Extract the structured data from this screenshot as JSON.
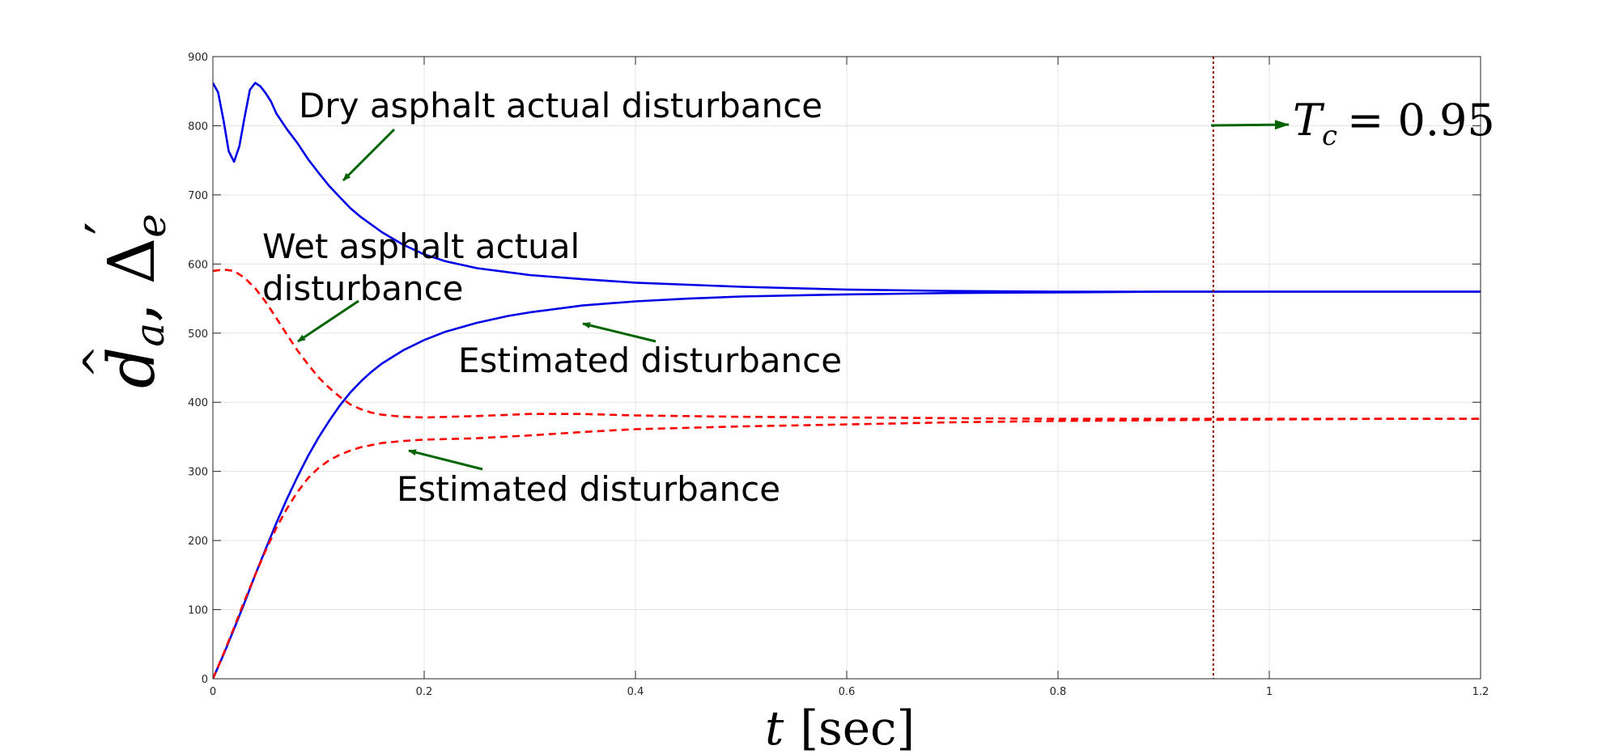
{
  "chart_data": {
    "type": "line",
    "title": "",
    "xlabel_italic": "t",
    "xlabel_unit": "[sec]",
    "ylabel_parts": {
      "d_hat": "d",
      "d_sub": "a",
      "comma": ",",
      "delta": "Δ",
      "delta_sub": "e",
      "prime": "′"
    },
    "xlim": [
      0,
      1.2
    ],
    "ylim": [
      0,
      900
    ],
    "xticks": [
      0,
      0.2,
      0.4,
      0.6,
      0.8,
      1,
      1.2
    ],
    "xtick_labels": [
      "0",
      "0.2",
      "0.4",
      "0.6",
      "0.8",
      "1",
      "1.2"
    ],
    "yticks": [
      0,
      100,
      200,
      300,
      400,
      500,
      600,
      700,
      800,
      900
    ],
    "ytick_labels": [
      "0",
      "100",
      "200",
      "300",
      "400",
      "500",
      "600",
      "700",
      "800",
      "900"
    ],
    "grid": true,
    "colors": {
      "dry": "#0000e6",
      "wet": "#ff0000",
      "arrow": "#006400",
      "tc_line": "#8b0000",
      "axis": "#262626",
      "grid": "#e3e3e3"
    },
    "series": [
      {
        "style": "solid",
        "color": "#0000e6",
        "x": [
          0,
          0.005,
          0.01,
          0.015,
          0.02,
          0.025,
          0.03,
          0.035,
          0.04,
          0.045,
          0.05,
          0.055,
          0.06,
          0.07,
          0.08,
          0.09,
          0.1,
          0.11,
          0.12,
          0.13,
          0.14,
          0.16,
          0.18,
          0.2,
          0.22,
          0.25,
          0.3,
          0.35,
          0.4,
          0.5,
          0.6,
          0.7,
          0.8,
          0.9,
          1.0,
          1.1,
          1.2
        ],
        "y": [
          862,
          848,
          808,
          763,
          748,
          770,
          812,
          852,
          862,
          857,
          847,
          835,
          818,
          795,
          775,
          752,
          732,
          713,
          697,
          681,
          668,
          646,
          628,
          614,
          604,
          594,
          584,
          578,
          573,
          567,
          563,
          561,
          560,
          560,
          560,
          560,
          560
        ]
      },
      {
        "style": "solid",
        "color": "#0000e6",
        "x": [
          0,
          0.01,
          0.02,
          0.03,
          0.04,
          0.05,
          0.06,
          0.07,
          0.08,
          0.09,
          0.1,
          0.11,
          0.12,
          0.13,
          0.14,
          0.15,
          0.16,
          0.18,
          0.2,
          0.22,
          0.25,
          0.28,
          0.3,
          0.35,
          0.4,
          0.45,
          0.5,
          0.6,
          0.7,
          0.8,
          0.9,
          1.0,
          1.1,
          1.2
        ],
        "y": [
          0,
          35,
          72,
          110,
          150,
          188,
          225,
          260,
          292,
          322,
          349,
          373,
          395,
          414,
          430,
          444,
          456,
          475,
          490,
          502,
          515,
          525,
          530,
          540,
          546,
          550,
          553,
          556,
          558,
          559,
          560,
          560,
          560,
          560
        ]
      },
      {
        "style": "dashed",
        "color": "#ff0000",
        "x": [
          0,
          0.01,
          0.02,
          0.03,
          0.04,
          0.05,
          0.06,
          0.07,
          0.08,
          0.09,
          0.1,
          0.11,
          0.12,
          0.13,
          0.14,
          0.15,
          0.16,
          0.18,
          0.2,
          0.25,
          0.3,
          0.35,
          0.4,
          0.5,
          0.6,
          0.7,
          0.8,
          0.9,
          1.0,
          1.1,
          1.2
        ],
        "y": [
          590,
          592,
          590,
          580,
          565,
          545,
          522,
          498,
          475,
          455,
          436,
          421,
          408,
          397,
          390,
          385,
          382,
          379,
          378,
          380,
          383,
          383,
          381,
          379,
          378,
          377,
          376,
          376,
          376,
          376,
          376
        ]
      },
      {
        "style": "dashed",
        "color": "#ff0000",
        "x": [
          0,
          0.01,
          0.02,
          0.03,
          0.04,
          0.05,
          0.06,
          0.07,
          0.08,
          0.09,
          0.1,
          0.11,
          0.12,
          0.13,
          0.14,
          0.15,
          0.16,
          0.18,
          0.2,
          0.25,
          0.3,
          0.35,
          0.4,
          0.5,
          0.6,
          0.7,
          0.8,
          0.9,
          1.0,
          1.1,
          1.2
        ],
        "y": [
          0,
          36,
          74,
          113,
          150,
          186,
          218,
          246,
          270,
          290,
          305,
          316,
          324,
          330,
          335,
          338,
          341,
          344,
          346,
          348,
          352,
          357,
          361,
          365,
          368,
          371,
          373,
          374,
          375,
          376,
          376
        ]
      }
    ],
    "annotations": [
      {
        "text": "Dry asphalt actual disturbance"
      },
      {
        "lines": [
          "Wet asphalt actual",
          "disturbance"
        ]
      },
      {
        "text": "Estimated disturbance"
      },
      {
        "text": "Estimated disturbance"
      }
    ],
    "tc_marker": {
      "x": 0.947,
      "label_main": "T",
      "label_sub": "c",
      "label_eq": "= 0.95"
    }
  }
}
